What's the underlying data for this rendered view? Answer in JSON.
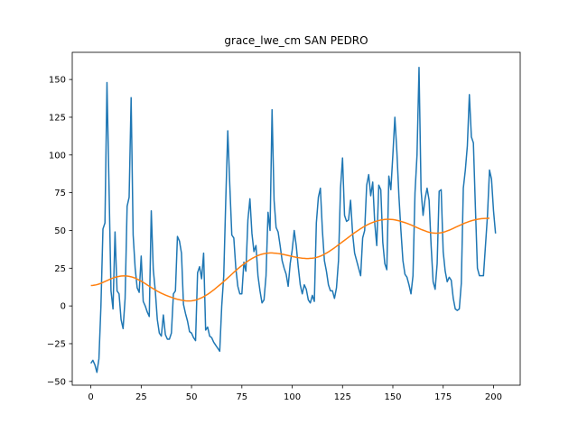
{
  "chart_data": {
    "type": "line",
    "title": "grace_lwe_cm SAN PEDRO",
    "xlabel": "",
    "ylabel": "",
    "xlim": [
      -9.25,
      213.25
    ],
    "ylim": [
      -52.5,
      168.0
    ],
    "x_ticks": [
      0,
      25,
      50,
      75,
      100,
      125,
      150,
      175,
      200
    ],
    "y_ticks": [
      -50,
      -25,
      0,
      25,
      50,
      75,
      100,
      125,
      150
    ],
    "grid": false,
    "legend": "none",
    "series": [
      {
        "color": "#1f77b4",
        "x_start": 0,
        "values": [
          -38,
          -36,
          -39,
          -44,
          -35,
          0,
          51,
          55,
          148,
          80,
          10,
          -2,
          49,
          10,
          8,
          -9,
          -15,
          5,
          66,
          72,
          138,
          47,
          25,
          12,
          9,
          33,
          3,
          0,
          -4,
          -7,
          63,
          24,
          10,
          -9,
          -18,
          -20,
          -6,
          -19,
          -22,
          -22,
          -18,
          8,
          10,
          46,
          43,
          35,
          1,
          -5,
          -10,
          -17,
          -18,
          -21,
          -23,
          22,
          26,
          18,
          35,
          -16,
          -14,
          -20,
          -21,
          -24,
          -26,
          -28,
          -30,
          0,
          20,
          70,
          116,
          80,
          47,
          45,
          25,
          13,
          8,
          8,
          29,
          23,
          57,
          71,
          48,
          36,
          40,
          20,
          10,
          2,
          4,
          20,
          62,
          50,
          130,
          70,
          52,
          49,
          40,
          30,
          25,
          21,
          13,
          28,
          37,
          50,
          40,
          26,
          14,
          8,
          14,
          11,
          4,
          2,
          7,
          3,
          55,
          72,
          78,
          50,
          30,
          23,
          14,
          10,
          10,
          5,
          12,
          30,
          78,
          98,
          60,
          56,
          57,
          70,
          48,
          35,
          30,
          25,
          20,
          45,
          50,
          80,
          87,
          73,
          82,
          55,
          40,
          80,
          77,
          42,
          28,
          24,
          86,
          77,
          100,
          125,
          102,
          73,
          50,
          30,
          21,
          19,
          14,
          8,
          20,
          75,
          100,
          158,
          77,
          60,
          71,
          78,
          70,
          40,
          16,
          11,
          28,
          76,
          77,
          36,
          23,
          16,
          19,
          17,
          5,
          -2,
          -3,
          -2,
          15,
          78,
          90,
          106,
          140,
          112,
          108,
          65,
          25,
          20,
          20,
          20,
          40,
          60,
          90,
          84,
          63,
          48
        ]
      },
      {
        "color": "#ff7f0e",
        "x_start": 0,
        "values": [
          13.5,
          13.6,
          13.8,
          14.1,
          14.5,
          15.0,
          15.6,
          16.2,
          16.8,
          17.4,
          18.0,
          18.5,
          19.0,
          19.3,
          19.6,
          19.8,
          19.9,
          19.9,
          19.8,
          19.6,
          19.3,
          18.9,
          18.4,
          17.8,
          17.1,
          16.4,
          15.6,
          14.8,
          13.9,
          13.1,
          12.2,
          11.4,
          10.6,
          9.8,
          9.1,
          8.4,
          7.8,
          7.2,
          6.7,
          6.2,
          5.7,
          5.2,
          4.8,
          4.4,
          4.1,
          3.8,
          3.6,
          3.4,
          3.3,
          3.3,
          3.4,
          3.6,
          3.9,
          4.3,
          4.8,
          5.4,
          6.1,
          6.9,
          7.7,
          8.6,
          9.6,
          10.6,
          11.7,
          12.8,
          13.9,
          15.0,
          16.2,
          17.4,
          18.6,
          19.8,
          21.0,
          22.2,
          23.4,
          24.6,
          25.7,
          26.8,
          27.8,
          28.8,
          29.7,
          30.6,
          31.4,
          32.1,
          32.8,
          33.4,
          33.9,
          34.3,
          34.6,
          34.8,
          35.0,
          35.1,
          35.1,
          35.0,
          34.9,
          34.7,
          34.5,
          34.3,
          34.0,
          33.7,
          33.4,
          33.1,
          32.8,
          32.5,
          32.2,
          32.0,
          31.8,
          31.6,
          31.5,
          31.4,
          31.4,
          31.5,
          31.6,
          31.8,
          32.1,
          32.5,
          33.0,
          33.6,
          34.3,
          35.0,
          35.8,
          36.7,
          37.6,
          38.5,
          39.5,
          40.5,
          41.5,
          42.5,
          43.5,
          44.5,
          45.5,
          46.5,
          47.5,
          48.5,
          49.4,
          50.3,
          51.2,
          52.0,
          52.8,
          53.5,
          54.2,
          54.8,
          55.3,
          55.8,
          56.2,
          56.6,
          56.9,
          57.1,
          57.3,
          57.4,
          57.4,
          57.3,
          57.2,
          57.0,
          56.7,
          56.4,
          56.0,
          55.6,
          55.2,
          54.7,
          54.2,
          53.7,
          53.1,
          52.5,
          51.9,
          51.3,
          50.7,
          50.2,
          49.7,
          49.2,
          48.8,
          48.5,
          48.3,
          48.2,
          48.2,
          48.3,
          48.5,
          48.8,
          49.2,
          49.7,
          50.2,
          50.8,
          51.4,
          52.0,
          52.6,
          53.2,
          53.8,
          54.4,
          55.0,
          55.5,
          56.0,
          56.4,
          56.8,
          57.1,
          57.4,
          57.6,
          57.8,
          57.9,
          58.0,
          58.0,
          58.1
        ]
      }
    ]
  }
}
